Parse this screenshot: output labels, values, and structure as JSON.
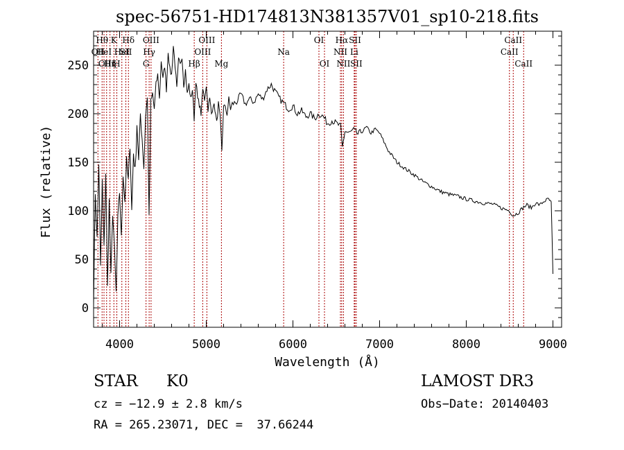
{
  "chart_data": {
    "type": "line",
    "title": "spec-56751-HD174813N381357V01_sp10-218.fits",
    "xlabel": "Wavelength (Å)",
    "ylabel": "Flux (relative)",
    "xlim": [
      3700,
      9100
    ],
    "ylim": [
      -20,
      285
    ],
    "xticks": [
      4000,
      5000,
      6000,
      7000,
      8000,
      9000
    ],
    "yticks": [
      0,
      50,
      100,
      150,
      200,
      250
    ],
    "grid": false,
    "series": [
      {
        "x": [
          3700,
          3720,
          3740,
          3760,
          3780,
          3800,
          3820,
          3840,
          3860,
          3880,
          3900,
          3920,
          3940,
          3960,
          3980,
          4000,
          4020,
          4040,
          4060,
          4080,
          4100,
          4120,
          4140,
          4160,
          4180,
          4200,
          4220,
          4240,
          4260,
          4280,
          4300,
          4320,
          4340,
          4360,
          4380,
          4400,
          4420,
          4440,
          4460,
          4480,
          4500,
          4520,
          4540,
          4560,
          4580,
          4600,
          4620,
          4640,
          4660,
          4680,
          4700,
          4720,
          4740,
          4760,
          4780,
          4800,
          4820,
          4840,
          4860,
          4880,
          4900,
          4920,
          4940,
          4960,
          4980,
          5000,
          5020,
          5040,
          5060,
          5080,
          5100,
          5120,
          5140,
          5160,
          5180,
          5200,
          5220,
          5240,
          5260,
          5280,
          5300,
          5350,
          5400,
          5450,
          5500,
          5550,
          5600,
          5650,
          5700,
          5750,
          5800,
          5850,
          5900,
          5950,
          6000,
          6050,
          6100,
          6150,
          6200,
          6250,
          6300,
          6350,
          6400,
          6450,
          6500,
          6550,
          6570,
          6600,
          6650,
          6700,
          6750,
          6800,
          6850,
          6900,
          6950,
          7000,
          7100,
          7200,
          7300,
          7400,
          7500,
          7600,
          7700,
          7800,
          7900,
          8000,
          8100,
          8200,
          8300,
          8400,
          8500,
          8540,
          8600,
          8650,
          8700,
          8750,
          8800,
          8850,
          8900,
          8950,
          8980,
          9000
        ],
        "y": [
          10,
          120,
          70,
          150,
          40,
          130,
          60,
          140,
          20,
          110,
          30,
          100,
          60,
          15,
          90,
          120,
          70,
          140,
          110,
          150,
          130,
          170,
          100,
          160,
          140,
          190,
          150,
          200,
          175,
          145,
          200,
          215,
          90,
          210,
          220,
          205,
          230,
          240,
          215,
          255,
          235,
          250,
          225,
          265,
          245,
          240,
          270,
          250,
          225,
          255,
          250,
          260,
          230,
          245,
          220,
          230,
          215,
          225,
          195,
          235,
          215,
          210,
          200,
          225,
          215,
          230,
          205,
          215,
          200,
          210,
          205,
          190,
          210,
          195,
          160,
          210,
          205,
          200,
          215,
          205,
          210,
          212,
          220,
          210,
          215,
          212,
          220,
          215,
          225,
          230,
          222,
          215,
          210,
          205,
          208,
          200,
          203,
          197,
          200,
          195,
          200,
          197,
          190,
          193,
          190,
          187,
          165,
          182,
          180,
          183,
          179,
          182,
          186,
          180,
          184,
          180,
          162,
          150,
          143,
          137,
          130,
          125,
          120,
          117,
          115,
          112,
          110,
          108,
          107,
          103,
          100,
          95,
          98,
          103,
          106,
          103,
          108,
          106,
          110,
          112,
          108,
          35
        ]
      }
    ],
    "lines": [
      {
        "wavelength": 3750,
        "label": "OII",
        "row": 2
      },
      {
        "wavelength": 3798,
        "label": "Hθ",
        "row": 1
      },
      {
        "wavelength": 3820,
        "label": "HeI",
        "row": 2
      },
      {
        "wavelength": 3850,
        "label": "OIII",
        "row": 3
      },
      {
        "wavelength": 3889,
        "label": "Hη",
        "row": 3
      },
      {
        "wavelength": 3934,
        "label": "K",
        "row": 1
      },
      {
        "wavelength": 3968,
        "label": "H",
        "row": 3
      },
      {
        "wavelength": 4026,
        "label": "HeI",
        "row": 2
      },
      {
        "wavelength": 4072,
        "label": "SII",
        "row": 2
      },
      {
        "wavelength": 4102,
        "label": "Hδ",
        "row": 1
      },
      {
        "wavelength": 4305,
        "label": "G",
        "row": 3
      },
      {
        "wavelength": 4341,
        "label": "Hγ",
        "row": 2
      },
      {
        "wavelength": 4363,
        "label": "OIII",
        "row": 1
      },
      {
        "wavelength": 4861,
        "label": "Hβ",
        "row": 3
      },
      {
        "wavelength": 4959,
        "label": "OIII",
        "row": 2
      },
      {
        "wavelength": 5007,
        "label": "OIII",
        "row": 1
      },
      {
        "wavelength": 5175,
        "label": "Mg",
        "row": 3
      },
      {
        "wavelength": 5893,
        "label": "Na",
        "row": 2
      },
      {
        "wavelength": 6300,
        "label": "OI",
        "row": 1
      },
      {
        "wavelength": 6364,
        "label": "OI",
        "row": 3
      },
      {
        "wavelength": 6548,
        "label": "NII",
        "row": 2
      },
      {
        "wavelength": 6563,
        "label": "Hα",
        "row": 1
      },
      {
        "wavelength": 6583,
        "label": "NII",
        "row": 3
      },
      {
        "wavelength": 6707,
        "label": "Li",
        "row": 2
      },
      {
        "wavelength": 6716,
        "label": "SII",
        "row": 1
      },
      {
        "wavelength": 6731,
        "label": "SII",
        "row": 3
      },
      {
        "wavelength": 8498,
        "label": "CaII",
        "row": 2
      },
      {
        "wavelength": 8542,
        "label": "CaII",
        "row": 1
      },
      {
        "wavelength": 8662,
        "label": "CaII",
        "row": 3
      }
    ]
  },
  "info": {
    "object_class": "STAR",
    "subclass": "K0",
    "survey": "LAMOST DR3",
    "cz": "cz = −12.9 ± 2.8 km/s",
    "obs_date": "Obs−Date: 20140403",
    "coords": "RA = 265.23071, DEC =  37.66244"
  },
  "colors": {
    "spectrum": "#000000",
    "line_markers": "#aa0000",
    "axes": "#000000"
  }
}
